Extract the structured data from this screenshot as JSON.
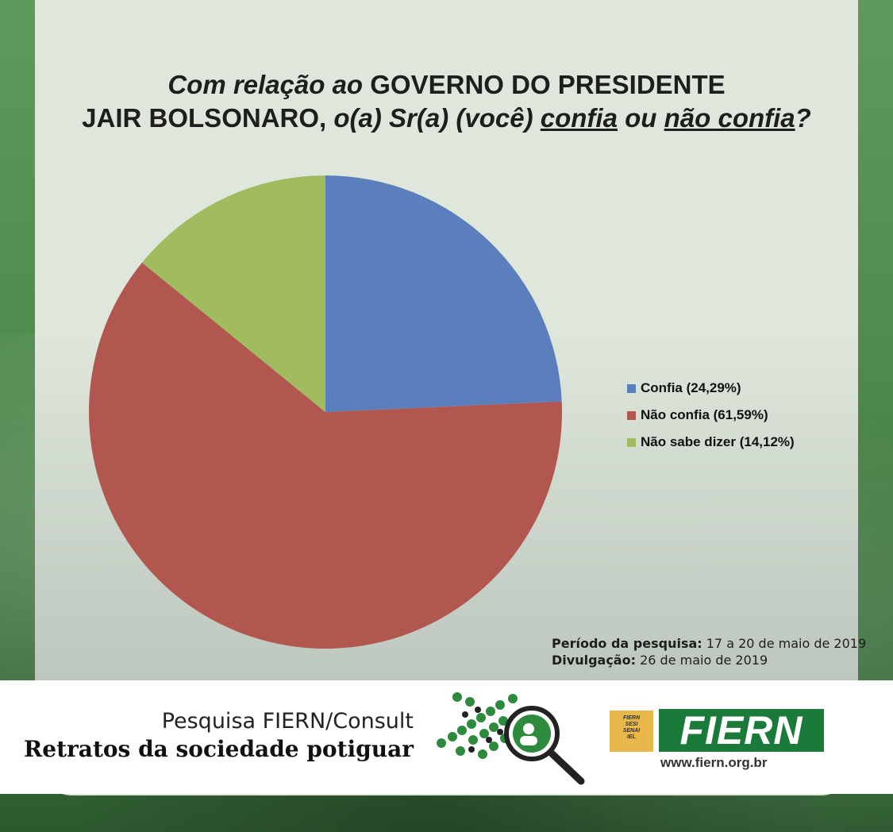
{
  "title": {
    "part1": "Com relação ao",
    "part2": "GOVERNO DO PRESIDENTE",
    "part3": "JAIR BOLSONARO,",
    "part4": "o(a) Sr(a) (você)",
    "part5": "confia",
    "part6": "ou",
    "part7": "não confia",
    "part8": "?"
  },
  "chart_data": {
    "type": "pie",
    "categories": [
      "Confia (24,29%)",
      "Não confia (61,59%)",
      "Não sabe dizer (14,12%)"
    ],
    "values": [
      24.29,
      61.59,
      14.12
    ],
    "colors": [
      "#5b7fbc",
      "#b25650",
      "#a1bb5f"
    ],
    "legend_position": "right"
  },
  "footnote": {
    "period_label": "Período da pesquisa:",
    "period_value": "17 a 20 de maio de 2019",
    "release_label": "Divulgação:",
    "release_value": "26 de maio de 2019"
  },
  "footer": {
    "line1": "Pesquisa FIERN/Consult",
    "line2": "Retratos da sociedade potiguar",
    "brand": "FIERN",
    "badge": [
      "FIERN",
      "SESI",
      "SENAI",
      "IEL"
    ],
    "url": "www.fiern.org.br"
  }
}
